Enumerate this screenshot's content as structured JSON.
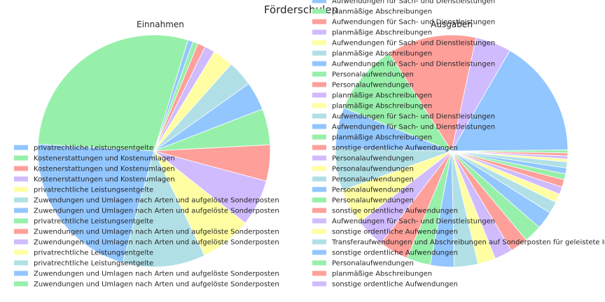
{
  "chart_data": {
    "type": "pie",
    "title": "Förderschulen",
    "palette": [
      "#92c6ff",
      "#97f0aa",
      "#ff9f9a",
      "#d0bbff",
      "#fffea3",
      "#b0e0e6"
    ],
    "charts": [
      {
        "title": "Einnahmen",
        "legend_position": "lower-left",
        "slices": [
          {
            "label": "privatrechtliche Leistungsentgelte",
            "value": 1.0
          },
          {
            "label": "Kostenerstattungen und Kostenumlagen",
            "value": 1.0
          },
          {
            "label": "Kostenerstattungen und Kostenumlagen",
            "value": 1.5
          },
          {
            "label": "Kostenerstattungen und Kostenumlagen",
            "value": 2.0
          },
          {
            "label": "privatrechtliche Leistungsentgelte",
            "value": 4.0
          },
          {
            "label": "Zuwendungen und Umlagen nach Arten und aufgelöste Sonderposten",
            "value": 5.0
          },
          {
            "label": "Zuwendungen und Umlagen nach Arten und aufgelöste Sonderposten",
            "value": 5.5
          },
          {
            "label": "privatrechtliche Leistungsentgelte",
            "value": 7.0
          },
          {
            "label": "Zuwendungen und Umlagen nach Arten und aufgelöste Sonderposten",
            "value": 7.0
          },
          {
            "label": "Zuwendungen und Umlagen nach Arten und aufgelöste Sonderposten",
            "value": 9.0
          },
          {
            "label": "privatrechtliche Leistungsentgelte",
            "value": 10.0
          },
          {
            "label": "privatrechtliche Leistungsentgelte",
            "value": 16.0
          },
          {
            "label": "Zuwendungen und Umlagen nach Arten und aufgelöste Sonderposten",
            "value": 30.0
          },
          {
            "label": "Zuwendungen und Umlagen nach Arten und aufgelöste Sonderposten",
            "value": 40.0
          }
        ]
      },
      {
        "title": "Ausgaben",
        "legend_position": "lower-left",
        "slices": [
          {
            "label": "Aufwendungen für Sach- und Dienstleistungen",
            "value": 40.0
          },
          {
            "label": "planmäßige Abschreibungen",
            "value": 1.0
          },
          {
            "label": "Aufwendungen für Sach- und Dienstleistungen",
            "value": 1.0
          },
          {
            "label": "planmäßige Abschreibungen",
            "value": 1.0
          },
          {
            "label": "Aufwendungen für Sach- und Dienstleistungen",
            "value": 1.0
          },
          {
            "label": "planmäßige Abschreibungen",
            "value": 2.0
          },
          {
            "label": "Aufwendungen für Sach- und Dienstleistungen",
            "value": 2.0
          },
          {
            "label": "Personalaufwendungen",
            "value": 2.0
          },
          {
            "label": "Personalaufwendungen",
            "value": 2.5
          },
          {
            "label": "planmäßige Abschreibungen",
            "value": 2.5
          },
          {
            "label": "planmäßige Abschreibungen",
            "value": 3.0
          },
          {
            "label": "Aufwendungen für Sach- und Dienstleistungen",
            "value": 4.0
          },
          {
            "label": "Aufwendungen für Sach- und Dienstleistungen",
            "value": 6.0
          },
          {
            "label": "planmäßige Abschreibungen",
            "value": 6.0
          },
          {
            "label": "sonstige ordentliche Aufwendungen",
            "value": 6.0
          },
          {
            "label": "Personalaufwendungen",
            "value": 6.0
          },
          {
            "label": "Personalaufwendungen",
            "value": 6.0
          },
          {
            "label": "Personalaufwendungen",
            "value": 8.0
          },
          {
            "label": "Personalaufwendungen",
            "value": 8.0
          },
          {
            "label": "Personalaufwendungen",
            "value": 8.0
          },
          {
            "label": "sonstige ordentliche Aufwendungen",
            "value": 10.0
          },
          {
            "label": "Aufwendungen für Sach- und Dienstleistungen",
            "value": 10.0
          },
          {
            "label": "sonstige ordentliche Aufwendungen",
            "value": 12.0
          },
          {
            "label": "Transferaufwendungen und Abschreibungen auf Sonderposten für geleistete Investitionszuschüsse",
            "value": 14.0
          },
          {
            "label": "sonstige ordentliche Aufwendungen",
            "value": 14.0
          },
          {
            "label": "Personalaufwendungen",
            "value": 24.0
          },
          {
            "label": "planmäßige Abschreibungen",
            "value": 30.0
          },
          {
            "label": "sonstige ordentliche Aufwendungen",
            "value": 12.0
          }
        ]
      }
    ]
  }
}
